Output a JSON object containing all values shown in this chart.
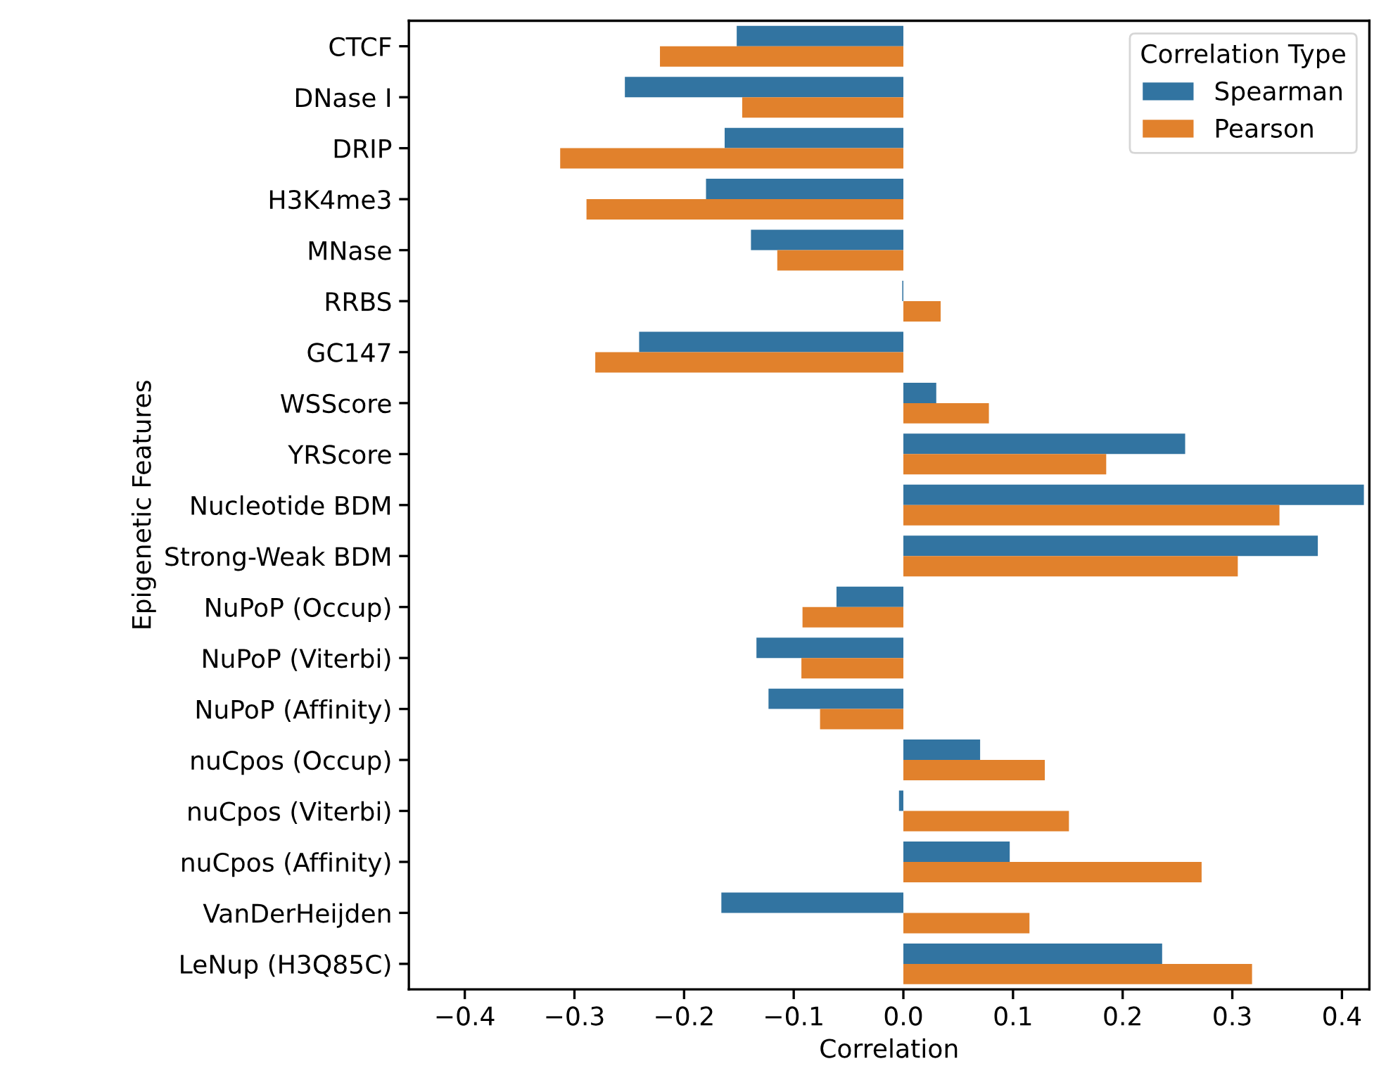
{
  "chart_data": {
    "type": "bar",
    "orientation": "horizontal",
    "xlabel": "Correlation",
    "ylabel": "Epigenetic Features",
    "legend_title": "Correlation Type",
    "legend": "top right",
    "grid": false,
    "categories": [
      "CTCF",
      "DNase I",
      "DRIP",
      "H3K4me3",
      "MNase",
      "RRBS",
      "GC147",
      "WSScore",
      "YRScore",
      "Nucleotide BDM",
      "Strong-Weak BDM",
      "NuPoP (Occup)",
      "NuPoP (Viterbi)",
      "NuPoP (Affinity)",
      "nuCpos (Occup)",
      "nuCpos (Viterbi)",
      "nuCpos (Affinity)",
      "VanDerHeijden",
      "LeNup (H3Q85C)"
    ],
    "xlim": [
      -0.451,
      0.425
    ],
    "xticks": [
      {
        "value": -0.4,
        "label": "−0.4"
      },
      {
        "value": -0.3,
        "label": "−0.3"
      },
      {
        "value": -0.2,
        "label": "−0.2"
      },
      {
        "value": -0.1,
        "label": "−0.1"
      },
      {
        "value": 0.0,
        "label": "0.0"
      },
      0.1,
      0.2,
      0.3,
      0.4
    ],
    "series": [
      {
        "name": "Spearman",
        "color": "#3274a1",
        "values": [
          -0.152,
          -0.254,
          -0.163,
          -0.18,
          -0.139,
          -0.001,
          -0.241,
          0.03,
          0.257,
          0.42,
          0.378,
          -0.061,
          -0.134,
          -0.123,
          0.07,
          -0.004,
          0.097,
          -0.166,
          0.236
        ]
      },
      {
        "name": "Pearson",
        "color": "#e1812c",
        "values": [
          -0.222,
          -0.147,
          -0.313,
          -0.289,
          -0.115,
          0.034,
          -0.281,
          0.078,
          0.185,
          0.343,
          0.305,
          -0.092,
          -0.093,
          -0.076,
          0.129,
          0.151,
          0.272,
          0.115,
          0.318
        ]
      }
    ]
  }
}
